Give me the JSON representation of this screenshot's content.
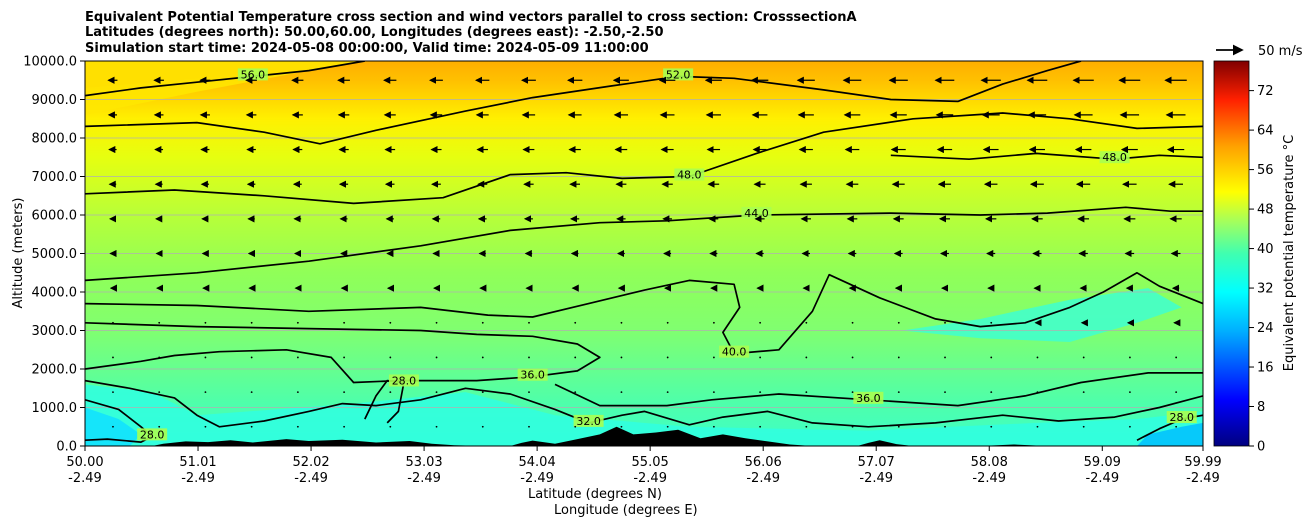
{
  "chart_data": {
    "type": "heatmap",
    "title_lines": [
      "Equivalent Potential Temperature cross section and wind vectors parallel to cross section: CrosssectionA",
      "Latitudes (degrees north): 50.00,60.00, Longitudes (degrees east): -2.50,-2.50",
      "Simulation start time: 2024-05-08 00:00:00, Valid time: 2024-05-09 11:00:00"
    ],
    "xlabel_1": "Latitude (degrees N)",
    "xlabel_2": "Longitude (degrees E)",
    "ylabel": "Altitude (meters)",
    "colorbar_label": "Equivalent potential temperature °C",
    "vector_key_label": "50 m/s",
    "xlim": [
      50.0,
      59.99
    ],
    "ylim": [
      0,
      10000
    ],
    "x_ticks": [
      {
        "lat": "50.00",
        "lon": "-2.49",
        "value": 50.0
      },
      {
        "lat": "51.01",
        "lon": "-2.49",
        "value": 51.01
      },
      {
        "lat": "52.02",
        "lon": "-2.49",
        "value": 52.02
      },
      {
        "lat": "53.03",
        "lon": "-2.49",
        "value": 53.03
      },
      {
        "lat": "54.04",
        "lon": "-2.49",
        "value": 54.04
      },
      {
        "lat": "55.05",
        "lon": "-2.49",
        "value": 55.05
      },
      {
        "lat": "56.06",
        "lon": "-2.49",
        "value": 56.06
      },
      {
        "lat": "57.07",
        "lon": "-2.49",
        "value": 57.07
      },
      {
        "lat": "58.08",
        "lon": "-2.49",
        "value": 58.08
      },
      {
        "lat": "59.09",
        "lon": "-2.49",
        "value": 59.09
      },
      {
        "lat": "59.99",
        "lon": "-2.49",
        "value": 59.99
      }
    ],
    "y_ticks": [
      {
        "label": "0.0",
        "value": 0
      },
      {
        "label": "1000.0",
        "value": 1000
      },
      {
        "label": "2000.0",
        "value": 2000
      },
      {
        "label": "3000.0",
        "value": 3000
      },
      {
        "label": "4000.0",
        "value": 4000
      },
      {
        "label": "5000.0",
        "value": 5000
      },
      {
        "label": "6000.0",
        "value": 6000
      },
      {
        "label": "7000.0",
        "value": 7000
      },
      {
        "label": "8000.0",
        "value": 8000
      },
      {
        "label": "9000.0",
        "value": 9000
      },
      {
        "label": "10000.0",
        "value": 10000
      }
    ],
    "colorbar_ticks": [
      {
        "label": "0",
        "value": 0
      },
      {
        "label": "8",
        "value": 8
      },
      {
        "label": "16",
        "value": 16
      },
      {
        "label": "24",
        "value": 24
      },
      {
        "label": "32",
        "value": 32
      },
      {
        "label": "40",
        "value": 40
      },
      {
        "label": "48",
        "value": 48
      },
      {
        "label": "56",
        "value": 56
      },
      {
        "label": "64",
        "value": 64
      },
      {
        "label": "72",
        "value": 72
      }
    ],
    "colorbar_range": [
      0,
      78
    ],
    "grid": "horizontal",
    "contours": [
      {
        "label": "56.0",
        "value": 56,
        "points": [
          [
            50.0,
            9100
          ],
          [
            50.5,
            9300
          ],
          [
            51.0,
            9450
          ],
          [
            51.5,
            9600
          ],
          [
            52.0,
            9750
          ],
          [
            52.3,
            9900
          ],
          [
            52.5,
            10000
          ]
        ]
      },
      {
        "label": "52.0",
        "value": 52,
        "points": [
          [
            50.0,
            8300
          ],
          [
            51.0,
            8400
          ],
          [
            51.6,
            8150
          ],
          [
            52.1,
            7850
          ],
          [
            52.6,
            8200
          ],
          [
            53.4,
            8700
          ],
          [
            54.0,
            9050
          ],
          [
            54.7,
            9350
          ],
          [
            55.3,
            9600
          ],
          [
            55.8,
            9550
          ],
          [
            56.6,
            9250
          ],
          [
            57.2,
            9000
          ],
          [
            57.8,
            8950
          ],
          [
            58.2,
            9400
          ],
          [
            58.6,
            9750
          ],
          [
            58.9,
            10000
          ]
        ]
      },
      {
        "label": "48.0",
        "value": 48,
        "points": [
          [
            50.0,
            6550
          ],
          [
            50.8,
            6650
          ],
          [
            51.6,
            6500
          ],
          [
            52.4,
            6300
          ],
          [
            53.2,
            6450
          ],
          [
            53.8,
            7050
          ],
          [
            54.3,
            7100
          ],
          [
            54.8,
            6950
          ],
          [
            55.4,
            7000
          ],
          [
            56.0,
            7600
          ],
          [
            56.6,
            8150
          ],
          [
            57.4,
            8500
          ],
          [
            58.2,
            8650
          ],
          [
            58.8,
            8500
          ],
          [
            59.4,
            8250
          ],
          [
            59.99,
            8300
          ]
        ]
      },
      {
        "label": "48.0",
        "value": 48,
        "points": [
          [
            57.2,
            7550
          ],
          [
            57.9,
            7450
          ],
          [
            58.5,
            7600
          ],
          [
            59.2,
            7450
          ],
          [
            59.6,
            7550
          ],
          [
            59.99,
            7500
          ]
        ]
      },
      {
        "label": "44.0",
        "value": 44,
        "points": [
          [
            50.0,
            4300
          ],
          [
            51.0,
            4500
          ],
          [
            52.0,
            4800
          ],
          [
            53.0,
            5200
          ],
          [
            53.8,
            5600
          ],
          [
            54.6,
            5800
          ],
          [
            55.2,
            5850
          ],
          [
            56.0,
            6000
          ],
          [
            57.2,
            6050
          ],
          [
            58.0,
            6000
          ],
          [
            58.6,
            6050
          ],
          [
            59.3,
            6200
          ],
          [
            59.7,
            6100
          ],
          [
            59.99,
            6100
          ]
        ]
      },
      {
        "label": "40.0",
        "value": 40,
        "points": [
          [
            50.0,
            3700
          ],
          [
            51.0,
            3650
          ],
          [
            52.0,
            3500
          ],
          [
            53.0,
            3600
          ],
          [
            53.6,
            3400
          ],
          [
            54.0,
            3350
          ],
          [
            54.5,
            3700
          ],
          [
            55.0,
            4050
          ],
          [
            55.4,
            4300
          ],
          [
            55.8,
            4200
          ],
          [
            55.85,
            3600
          ],
          [
            55.7,
            2950
          ],
          [
            55.8,
            2400
          ],
          [
            56.2,
            2500
          ],
          [
            56.5,
            3500
          ],
          [
            56.65,
            4450
          ],
          [
            57.1,
            3850
          ],
          [
            57.6,
            3300
          ],
          [
            58.0,
            3100
          ],
          [
            58.4,
            3200
          ],
          [
            58.8,
            3600
          ],
          [
            59.1,
            4000
          ],
          [
            59.4,
            4500
          ],
          [
            59.6,
            4150
          ],
          [
            59.99,
            3700
          ]
        ]
      },
      {
        "label": "36.0",
        "value": 36,
        "points": [
          [
            50.0,
            3200
          ],
          [
            51.0,
            3100
          ],
          [
            52.0,
            3050
          ],
          [
            53.0,
            3000
          ],
          [
            53.5,
            2900
          ],
          [
            54.0,
            2850
          ],
          [
            54.4,
            2650
          ],
          [
            54.6,
            2300
          ],
          [
            54.4,
            1950
          ],
          [
            54.0,
            1800
          ],
          [
            53.5,
            1700
          ],
          [
            52.8,
            1700
          ],
          [
            52.4,
            1650
          ],
          [
            52.2,
            2300
          ],
          [
            51.8,
            2500
          ],
          [
            51.2,
            2450
          ],
          [
            50.8,
            2350
          ],
          [
            50.5,
            2200
          ],
          [
            50.0,
            2000
          ]
        ]
      },
      {
        "label": "36.0",
        "value": 36,
        "points": [
          [
            54.2,
            1600
          ],
          [
            54.6,
            1050
          ],
          [
            55.2,
            1050
          ],
          [
            55.6,
            1200
          ],
          [
            56.2,
            1350
          ],
          [
            57.0,
            1200
          ],
          [
            57.8,
            1050
          ],
          [
            58.4,
            1300
          ],
          [
            58.9,
            1650
          ],
          [
            59.5,
            1900
          ],
          [
            59.99,
            1900
          ]
        ]
      },
      {
        "label": "32.0",
        "value": 32,
        "points": [
          [
            50.0,
            1700
          ],
          [
            50.4,
            1500
          ],
          [
            50.8,
            1250
          ],
          [
            51.0,
            800
          ],
          [
            51.2,
            500
          ],
          [
            51.6,
            650
          ],
          [
            52.0,
            900
          ],
          [
            52.3,
            1100
          ],
          [
            52.6,
            1050
          ],
          [
            53.0,
            1200
          ],
          [
            53.4,
            1500
          ],
          [
            53.8,
            1350
          ],
          [
            54.2,
            950
          ],
          [
            54.5,
            600
          ],
          [
            54.8,
            800
          ],
          [
            55.0,
            900
          ],
          [
            55.4,
            550
          ],
          [
            55.7,
            750
          ],
          [
            56.1,
            900
          ],
          [
            56.5,
            600
          ],
          [
            57.0,
            500
          ],
          [
            57.6,
            600
          ],
          [
            58.2,
            800
          ],
          [
            58.7,
            650
          ],
          [
            59.2,
            750
          ],
          [
            59.6,
            1000
          ],
          [
            59.99,
            1300
          ]
        ]
      },
      {
        "label": "28.0",
        "value": 28,
        "points": [
          [
            50.0,
            1200
          ],
          [
            50.3,
            950
          ],
          [
            50.5,
            500
          ],
          [
            50.6,
            250
          ],
          [
            50.5,
            100
          ],
          [
            50.2,
            180
          ],
          [
            50.0,
            150
          ]
        ]
      },
      {
        "label": "28.0",
        "value": 28,
        "points": [
          [
            52.5,
            700
          ],
          [
            52.6,
            1300
          ],
          [
            52.7,
            1700
          ],
          [
            52.85,
            1650
          ],
          [
            52.8,
            900
          ],
          [
            52.7,
            600
          ]
        ]
      },
      {
        "label": "28.0",
        "value": 28,
        "points": [
          [
            59.4,
            150
          ],
          [
            59.6,
            450
          ],
          [
            59.8,
            700
          ],
          [
            59.99,
            800
          ]
        ]
      }
    ],
    "terrain": [
      [
        50.0,
        0
      ],
      [
        50.6,
        0
      ],
      [
        50.7,
        60
      ],
      [
        50.9,
        120
      ],
      [
        51.1,
        100
      ],
      [
        51.3,
        150
      ],
      [
        51.5,
        90
      ],
      [
        51.8,
        180
      ],
      [
        52.0,
        130
      ],
      [
        52.3,
        160
      ],
      [
        52.6,
        90
      ],
      [
        52.9,
        130
      ],
      [
        53.1,
        60
      ],
      [
        53.3,
        20
      ],
      [
        53.6,
        0
      ],
      [
        53.8,
        0
      ],
      [
        53.9,
        80
      ],
      [
        54.0,
        140
      ],
      [
        54.2,
        60
      ],
      [
        54.4,
        180
      ],
      [
        54.6,
        300
      ],
      [
        54.75,
        500
      ],
      [
        54.9,
        300
      ],
      [
        55.1,
        350
      ],
      [
        55.3,
        420
      ],
      [
        55.5,
        200
      ],
      [
        55.7,
        300
      ],
      [
        55.9,
        200
      ],
      [
        56.1,
        120
      ],
      [
        56.3,
        40
      ],
      [
        56.5,
        0
      ],
      [
        56.9,
        0
      ],
      [
        57.0,
        80
      ],
      [
        57.1,
        150
      ],
      [
        57.25,
        50
      ],
      [
        57.4,
        0
      ],
      [
        58.0,
        0
      ],
      [
        58.3,
        40
      ],
      [
        58.6,
        0
      ],
      [
        59.99,
        0
      ]
    ],
    "wind_vectors_note_units": "m/s",
    "vector_key_speed": 50
  }
}
